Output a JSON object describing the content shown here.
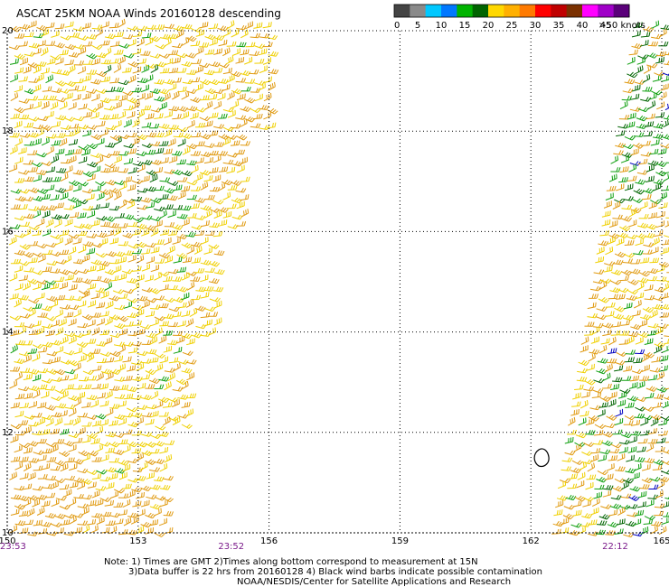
{
  "title": "ASCAT 25KM NOAA Winds 20160128 descending",
  "color_scale": {
    "labels": [
      "0",
      "5",
      "10",
      "15",
      "20",
      "25",
      "30",
      "35",
      "40",
      "45",
      ">50 knots"
    ],
    "colors": [
      "#444444",
      "#8a8a8a",
      "#00c8ff",
      "#0078ff",
      "#00b400",
      "#006400",
      "#ffd800",
      "#ffb000",
      "#ff7a00",
      "#ff0000",
      "#c00000",
      "#7a3000",
      "#ff00ff",
      "#a000c8",
      "#5a007a"
    ]
  },
  "map": {
    "lon_ticks": [
      "150",
      "153",
      "156",
      "159",
      "162",
      "165"
    ],
    "lat_ticks": [
      "20",
      "18",
      "16",
      "14",
      "12",
      "10"
    ],
    "lon_range": [
      150,
      165
    ],
    "lat_range": [
      10,
      20
    ]
  },
  "times": [
    {
      "label": "23:53",
      "lon": 150.0
    },
    {
      "label": "23:52",
      "lon": 155.0
    },
    {
      "label": "22:12",
      "lon": 163.8
    }
  ],
  "notes": {
    "line1": "Note: 1) Times are GMT 2)Times along bottom correspond to measurement at 15N",
    "line2": "3)Data buffer is 22 hrs from 20160128 4) Black wind barbs indicate possible contamination",
    "line3": "NOAA/NESDIS/Center for Satellite Applications and Research"
  },
  "legend_colors": {
    "yellow": "#f0d000",
    "orange": "#e09a10",
    "green": "#10a010",
    "dark_green": "#006400",
    "blue": "#0000c0"
  }
}
